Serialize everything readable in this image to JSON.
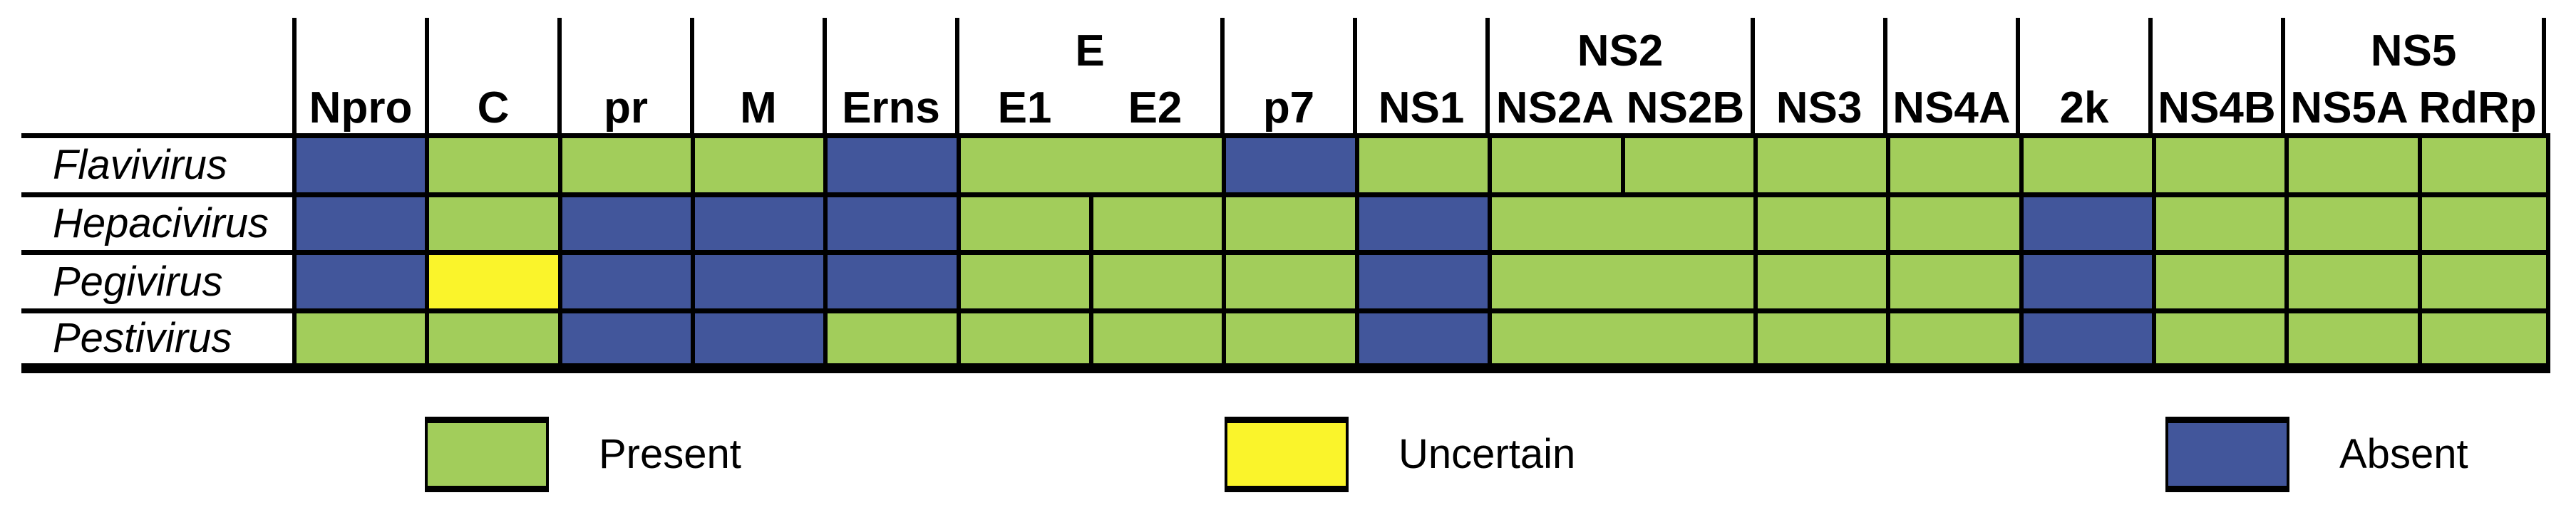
{
  "chart_data": {
    "type": "heatmap",
    "title": "",
    "columns": [
      "Npro",
      "C",
      "pr",
      "M",
      "Erns",
      "E1",
      "E2",
      "p7",
      "NS1",
      "NS2A",
      "NS2B",
      "NS3",
      "NS4A",
      "2k",
      "NS4B",
      "NS5A",
      "RdRp"
    ],
    "column_groups": [
      {
        "label": "E",
        "columns": [
          "E1",
          "E2"
        ]
      },
      {
        "label": "NS2",
        "columns": [
          "NS2A",
          "NS2B"
        ]
      },
      {
        "label": "NS5",
        "columns": [
          "NS5A",
          "RdRp"
        ]
      }
    ],
    "rows": [
      "Flavivirus",
      "Hepacivirus",
      "Pegivirus",
      "Pestivirus"
    ],
    "values": [
      [
        "absent",
        "present",
        "present",
        "present",
        "absent",
        "present",
        "present",
        "absent",
        "present",
        "present",
        "present",
        "present",
        "present",
        "present",
        "present",
        "present",
        "present"
      ],
      [
        "absent",
        "present",
        "absent",
        "absent",
        "absent",
        "present",
        "present",
        "present",
        "absent",
        "present",
        "present",
        "present",
        "present",
        "absent",
        "present",
        "present",
        "present"
      ],
      [
        "absent",
        "uncertain",
        "absent",
        "absent",
        "absent",
        "present",
        "present",
        "present",
        "absent",
        "present",
        "present",
        "present",
        "present",
        "absent",
        "present",
        "present",
        "present"
      ],
      [
        "present",
        "present",
        "absent",
        "absent",
        "present",
        "present",
        "present",
        "present",
        "absent",
        "present",
        "present",
        "present",
        "present",
        "absent",
        "present",
        "present",
        "present"
      ]
    ],
    "legend_entries": [
      "Present",
      "Uncertain",
      "Absent"
    ],
    "legend_position": "bottom",
    "grid": true
  },
  "figure": {
    "header_cells": [
      {
        "label": "Npro",
        "span": 1
      },
      {
        "label": "C",
        "span": 1
      },
      {
        "label": "pr",
        "span": 1
      },
      {
        "label": "M",
        "span": 1
      },
      {
        "label": "Erns",
        "span": 1
      },
      {
        "group": "E",
        "labels": [
          "E1",
          "E2"
        ],
        "span": 2
      },
      {
        "label": "p7",
        "span": 1
      },
      {
        "label": "NS1",
        "span": 1
      },
      {
        "group": "NS2",
        "labels": [
          "NS2A",
          "NS2B"
        ],
        "span": 2
      },
      {
        "label": "NS3",
        "span": 1
      },
      {
        "label": "NS4A",
        "span": 1
      },
      {
        "label": "2k",
        "span": 1
      },
      {
        "label": "NS4B",
        "span": 1
      },
      {
        "group": "NS5",
        "labels": [
          "NS5A",
          "RdRp"
        ],
        "span": 2
      }
    ],
    "rows": [
      {
        "name": "Flavivirus",
        "cells": [
          {
            "protein": "Npro",
            "span": 1,
            "state": "absent"
          },
          {
            "protein": "C",
            "span": 1,
            "state": "present"
          },
          {
            "protein": "pr",
            "span": 1,
            "state": "present"
          },
          {
            "protein": "M",
            "span": 1,
            "state": "present"
          },
          {
            "protein": "Erns",
            "span": 1,
            "state": "absent"
          },
          {
            "protein": "E1/E2",
            "span": 2,
            "state": "present"
          },
          {
            "protein": "p7",
            "span": 1,
            "state": "absent"
          },
          {
            "protein": "NS1",
            "span": 1,
            "state": "present"
          },
          {
            "protein": "NS2A",
            "span": 1,
            "state": "present"
          },
          {
            "protein": "NS2B",
            "span": 1,
            "state": "present"
          },
          {
            "protein": "NS3",
            "span": 1,
            "state": "present"
          },
          {
            "protein": "NS4A",
            "span": 1,
            "state": "present"
          },
          {
            "protein": "2k",
            "span": 1,
            "state": "present"
          },
          {
            "protein": "NS4B",
            "span": 1,
            "state": "present"
          },
          {
            "protein": "NS5A",
            "span": 1,
            "state": "present"
          },
          {
            "protein": "RdRp",
            "span": 1,
            "state": "present"
          }
        ]
      },
      {
        "name": "Hepacivirus",
        "cells": [
          {
            "protein": "Npro",
            "span": 1,
            "state": "absent"
          },
          {
            "protein": "C",
            "span": 1,
            "state": "present"
          },
          {
            "protein": "pr",
            "span": 1,
            "state": "absent"
          },
          {
            "protein": "M",
            "span": 1,
            "state": "absent"
          },
          {
            "protein": "Erns",
            "span": 1,
            "state": "absent"
          },
          {
            "protein": "E1",
            "span": 1,
            "state": "present"
          },
          {
            "protein": "E2",
            "span": 1,
            "state": "present"
          },
          {
            "protein": "p7",
            "span": 1,
            "state": "present"
          },
          {
            "protein": "NS1",
            "span": 1,
            "state": "absent"
          },
          {
            "protein": "NS2A/NS2B",
            "span": 2,
            "state": "present"
          },
          {
            "protein": "NS3",
            "span": 1,
            "state": "present"
          },
          {
            "protein": "NS4A",
            "span": 1,
            "state": "present"
          },
          {
            "protein": "2k",
            "span": 1,
            "state": "absent"
          },
          {
            "protein": "NS4B",
            "span": 1,
            "state": "present"
          },
          {
            "protein": "NS5A",
            "span": 1,
            "state": "present"
          },
          {
            "protein": "RdRp",
            "span": 1,
            "state": "present"
          }
        ]
      },
      {
        "name": "Pegivirus",
        "cells": [
          {
            "protein": "Npro",
            "span": 1,
            "state": "absent"
          },
          {
            "protein": "C",
            "span": 1,
            "state": "uncertain"
          },
          {
            "protein": "pr",
            "span": 1,
            "state": "absent"
          },
          {
            "protein": "M",
            "span": 1,
            "state": "absent"
          },
          {
            "protein": "Erns",
            "span": 1,
            "state": "absent"
          },
          {
            "protein": "E1",
            "span": 1,
            "state": "present"
          },
          {
            "protein": "E2",
            "span": 1,
            "state": "present"
          },
          {
            "protein": "p7",
            "span": 1,
            "state": "present"
          },
          {
            "protein": "NS1",
            "span": 1,
            "state": "absent"
          },
          {
            "protein": "NS2A/NS2B",
            "span": 2,
            "state": "present"
          },
          {
            "protein": "NS3",
            "span": 1,
            "state": "present"
          },
          {
            "protein": "NS4A",
            "span": 1,
            "state": "present"
          },
          {
            "protein": "2k",
            "span": 1,
            "state": "absent"
          },
          {
            "protein": "NS4B",
            "span": 1,
            "state": "present"
          },
          {
            "protein": "NS5A",
            "span": 1,
            "state": "present"
          },
          {
            "protein": "RdRp",
            "span": 1,
            "state": "present"
          }
        ]
      },
      {
        "name": "Pestivirus",
        "cells": [
          {
            "protein": "Npro",
            "span": 1,
            "state": "present"
          },
          {
            "protein": "C",
            "span": 1,
            "state": "present"
          },
          {
            "protein": "pr",
            "span": 1,
            "state": "absent"
          },
          {
            "protein": "M",
            "span": 1,
            "state": "absent"
          },
          {
            "protein": "Erns",
            "span": 1,
            "state": "present"
          },
          {
            "protein": "E1",
            "span": 1,
            "state": "present"
          },
          {
            "protein": "E2",
            "span": 1,
            "state": "present"
          },
          {
            "protein": "p7",
            "span": 1,
            "state": "present"
          },
          {
            "protein": "NS1",
            "span": 1,
            "state": "absent"
          },
          {
            "protein": "NS2A/NS2B",
            "span": 2,
            "state": "present"
          },
          {
            "protein": "NS3",
            "span": 1,
            "state": "present"
          },
          {
            "protein": "NS4A",
            "span": 1,
            "state": "present"
          },
          {
            "protein": "2k",
            "span": 1,
            "state": "absent"
          },
          {
            "protein": "NS4B",
            "span": 1,
            "state": "present"
          },
          {
            "protein": "NS5A",
            "span": 1,
            "state": "present"
          },
          {
            "protein": "RdRp",
            "span": 1,
            "state": "present"
          }
        ]
      }
    ]
  },
  "legend": {
    "items": [
      {
        "label": "Present",
        "state": "present"
      },
      {
        "label": "Uncertain",
        "state": "uncertain"
      },
      {
        "label": "Absent",
        "state": "absent"
      }
    ]
  },
  "colors": {
    "present": "#A2CD5B",
    "uncertain": "#FAF42B",
    "absent": "#42569B",
    "line": "#000000",
    "background": "#FFFFFF"
  }
}
